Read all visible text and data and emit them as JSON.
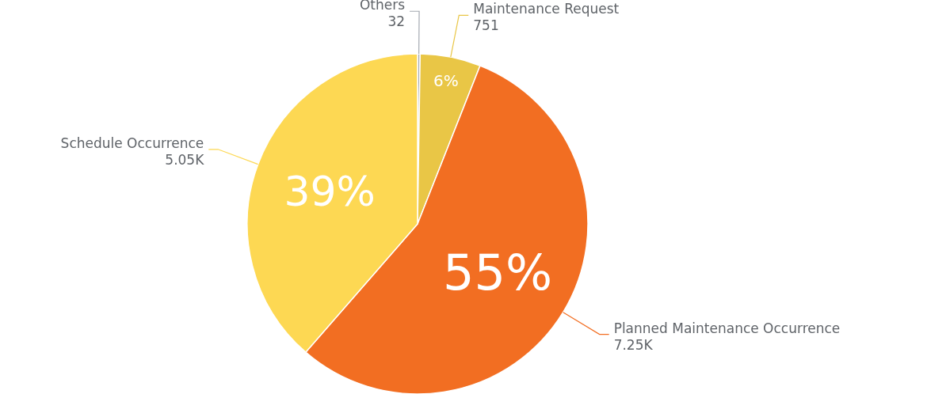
{
  "chart_data": {
    "type": "pie",
    "categories": [
      "Others",
      "Maintenance Request",
      "Planned Maintenance Occurrence",
      "Schedule Occurrence"
    ],
    "values": [
      32,
      751,
      7250,
      5050
    ],
    "value_labels": [
      "32",
      "751",
      "7.25K",
      "5.05K"
    ],
    "colors": [
      "#a4a9b1",
      "#e9c646",
      "#f26e22",
      "#fdd853"
    ],
    "annotations": [
      {
        "text": "6%",
        "x": "Maintenance Request"
      },
      {
        "text": "55%",
        "x": "Planned Maintenance Occurrence"
      },
      {
        "text": "39%",
        "x": "Schedule Occurrence"
      }
    ],
    "legend": false
  }
}
